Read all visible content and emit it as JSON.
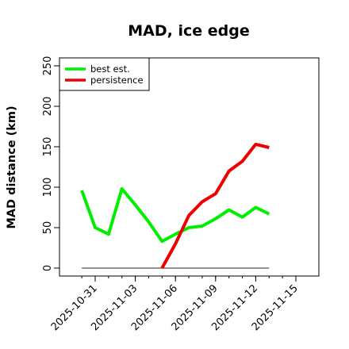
{
  "chart_data": {
    "type": "line",
    "title": "MAD, ice edge",
    "xlabel": "",
    "ylabel": "MAD distance (km)",
    "ylim": [
      0,
      250
    ],
    "yticks": [
      "0",
      "50",
      "100",
      "150",
      "200",
      "250"
    ],
    "xticks": [
      "2025-10-31",
      "2025-11-03",
      "2025-11-06",
      "2025-11-09",
      "2025-11-12",
      "2025-11-15"
    ],
    "x": [
      "2025-10-30",
      "2025-10-31",
      "2025-11-01",
      "2025-11-02",
      "2025-11-03",
      "2025-11-04",
      "2025-11-05",
      "2025-11-06",
      "2025-11-07",
      "2025-11-08",
      "2025-11-09",
      "2025-11-10",
      "2025-11-11",
      "2025-11-12",
      "2025-11-13"
    ],
    "series": [
      {
        "name": "best est.",
        "color": "#00ee00",
        "values": [
          96,
          50,
          42,
          98,
          78,
          57,
          33,
          42,
          50,
          52,
          61,
          72,
          63,
          75,
          67
        ]
      },
      {
        "name": "persistence",
        "color": "#ee0000",
        "values": [
          null,
          null,
          null,
          null,
          null,
          null,
          0,
          30,
          65,
          82,
          92,
          120,
          132,
          153,
          149
        ]
      }
    ],
    "reference_line": {
      "value": 0,
      "color": "#555555"
    },
    "legend_position": "top-left",
    "grid": false
  }
}
